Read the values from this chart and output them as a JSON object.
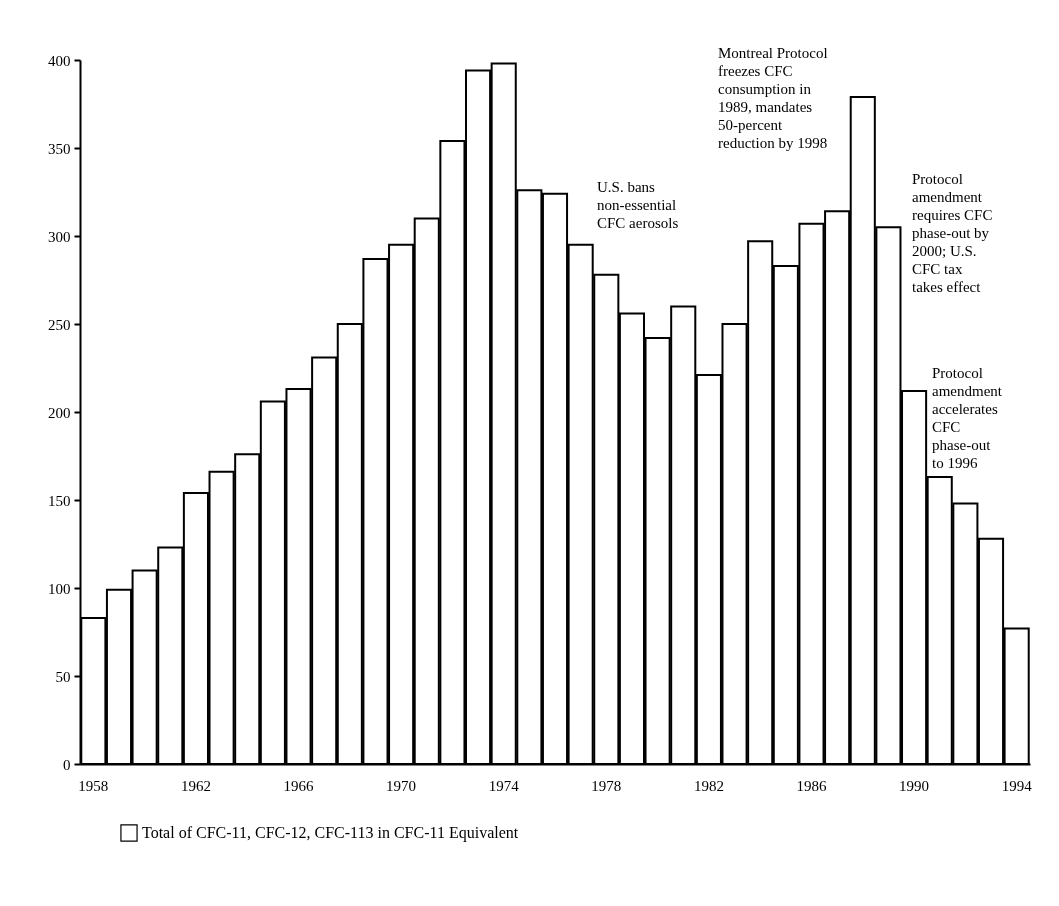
{
  "chart_data": {
    "type": "bar",
    "categories": [
      "1958",
      null,
      null,
      null,
      "1962",
      null,
      null,
      null,
      "1966",
      null,
      null,
      null,
      "1970",
      null,
      null,
      null,
      "1974",
      null,
      null,
      null,
      "1978",
      null,
      null,
      null,
      "1982",
      null,
      null,
      null,
      "1986",
      null,
      null,
      null,
      "1990",
      null,
      null,
      null,
      "1994"
    ],
    "series": [
      {
        "name": "Total of CFC-11, CFC-12, CFC-113 in CFC-11 Equivalent",
        "color": "#ffffff",
        "values": [
          83,
          99,
          110,
          123,
          154,
          166,
          176,
          206,
          213,
          231,
          250,
          287,
          295,
          310,
          354,
          394,
          398,
          326,
          324,
          295,
          278,
          256,
          242,
          260,
          221,
          250,
          297,
          283,
          307,
          314,
          379,
          305,
          212,
          163,
          148,
          128,
          77
        ]
      }
    ],
    "ylim": [
      0,
      400
    ],
    "yticks": [
      0,
      50,
      100,
      150,
      200,
      250,
      300,
      350,
      400
    ],
    "annotations": [
      "U.S. bans non-essential CFC aerosols",
      "Montreal Protocol freezes CFC consumption in 1989, mandates 50-percent reduction by 1998",
      "Protocol amendment requires CFC phase-out by 2000; U.S. CFC tax takes effect",
      "Protocol amendment accelerates CFC phase-out to 1996"
    ],
    "grid": false,
    "legend": "bottom"
  }
}
